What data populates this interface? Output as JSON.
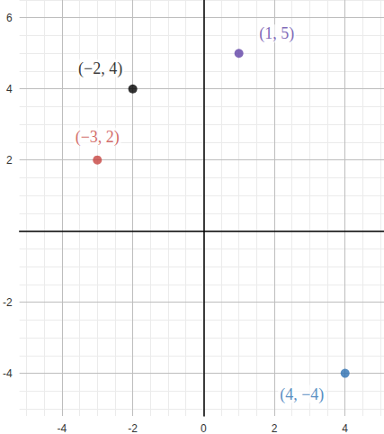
{
  "chart_data": {
    "type": "scatter",
    "x": [
      -3,
      -2,
      1,
      4
    ],
    "values": [
      2,
      4,
      5,
      -4
    ],
    "colors": [
      "#c74440",
      "#000000",
      "#6042a6",
      "#2d70b3"
    ],
    "data_labels": true,
    "value_labels": [
      "(−3, 2)",
      "(−2, 4)",
      "(1, 5)",
      "(4, −4)"
    ],
    "xlim": [
      -5.2,
      5.1
    ],
    "ylim": [
      -5.2,
      6.5
    ],
    "xticks": [
      -4,
      -2,
      0,
      2,
      4
    ],
    "yticks": [
      -4,
      -2,
      2,
      4,
      6
    ],
    "grid": true,
    "marker": "circle"
  }
}
